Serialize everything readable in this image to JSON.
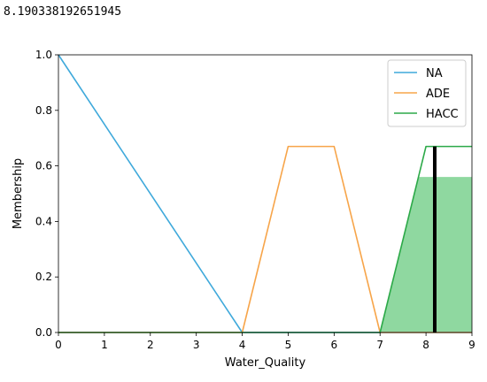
{
  "output": {
    "text": "8.190338192651945"
  },
  "colors": {
    "na": "#3fa9db",
    "ade": "#f7a54a",
    "hacc": "#2ca948",
    "fill": "#8fd8a0",
    "marker": "#000000"
  },
  "chart_data": {
    "type": "line",
    "xlabel": "Water_Quality",
    "ylabel": "Membership",
    "xlim": [
      0,
      9
    ],
    "ylim": [
      0,
      1
    ],
    "xticks": [
      0,
      1,
      2,
      3,
      4,
      5,
      6,
      7,
      8,
      9
    ],
    "yticks": [
      0.0,
      0.2,
      0.4,
      0.6,
      0.8,
      1.0
    ],
    "ytick_labels": [
      "0.0",
      "0.2",
      "0.4",
      "0.6",
      "0.8",
      "1.0"
    ],
    "legend_position": "top-right",
    "series": [
      {
        "name": "NA",
        "color_key": "na",
        "points": [
          [
            0,
            1.0
          ],
          [
            4,
            0.0
          ],
          [
            9,
            0.0
          ]
        ]
      },
      {
        "name": "ADE",
        "color_key": "ade",
        "points": [
          [
            0,
            0.0
          ],
          [
            4,
            0.0
          ],
          [
            5,
            0.67
          ],
          [
            6,
            0.67
          ],
          [
            7,
            0.0
          ],
          [
            9,
            0.0
          ]
        ]
      },
      {
        "name": "HACC",
        "color_key": "hacc",
        "points": [
          [
            0,
            0.0
          ],
          [
            7,
            0.0
          ],
          [
            8,
            0.67
          ],
          [
            9,
            0.67
          ]
        ]
      }
    ],
    "aggregate_fill": {
      "points": [
        [
          7,
          0.0
        ],
        [
          7.84,
          0.56
        ],
        [
          9,
          0.56
        ],
        [
          9,
          0.0
        ]
      ]
    },
    "defuzzified_marker": {
      "x": 8.190338192651945,
      "y_top": 0.67
    }
  }
}
